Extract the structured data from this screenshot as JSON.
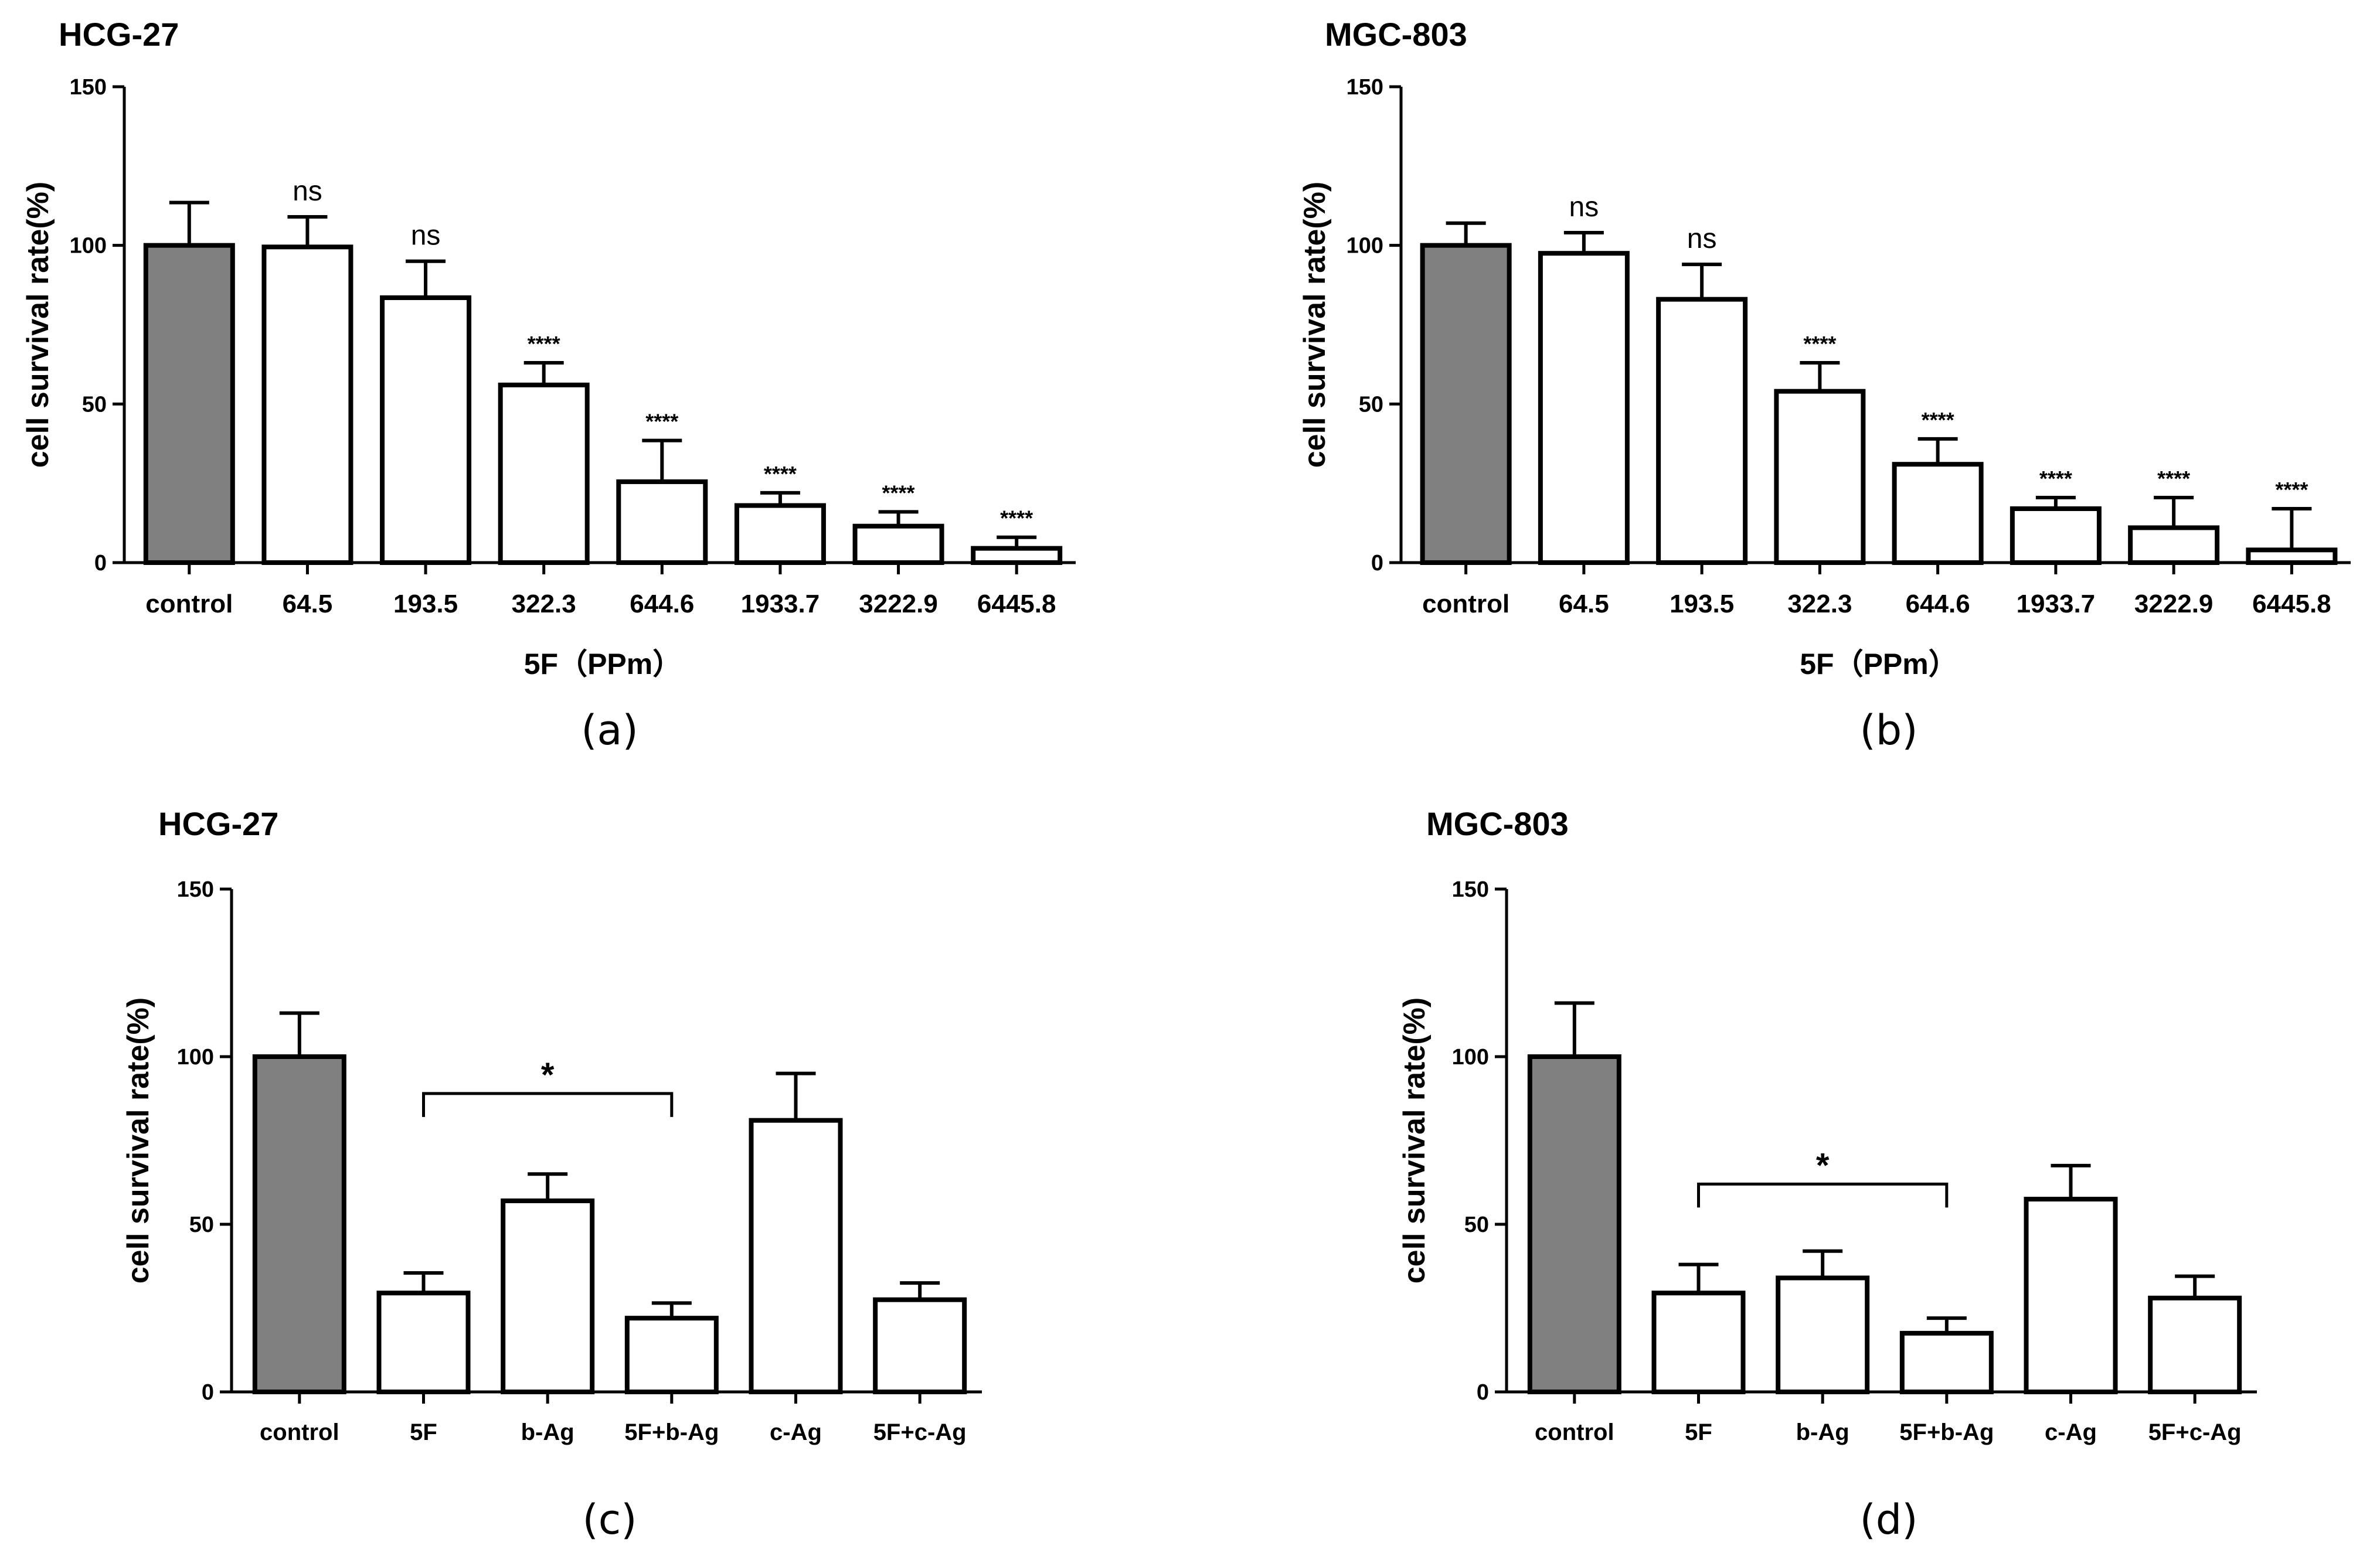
{
  "chart_data": [
    {
      "id": "a",
      "type": "bar",
      "title": "HCG-27",
      "caption": "(a)",
      "ylabel": "cell survival rate(%)",
      "xlabel": "5F（PPm）",
      "ylim": [
        0,
        150
      ],
      "yticks": [
        0,
        50,
        100,
        150
      ],
      "categories": [
        "control",
        "64.5",
        "193.5",
        "322.3",
        "644.6",
        "1933.7",
        "3222.9",
        "6445.8"
      ],
      "values": [
        100,
        99.5,
        83.5,
        56,
        25.5,
        18,
        11.5,
        4.5
      ],
      "errors": [
        13.5,
        9.5,
        11.5,
        7,
        13,
        4,
        4.5,
        3.5
      ],
      "fill": [
        "#808080",
        "#ffffff",
        "#ffffff",
        "#ffffff",
        "#ffffff",
        "#ffffff",
        "#ffffff",
        "#ffffff"
      ],
      "annotations": [
        "",
        "ns",
        "ns",
        "****",
        "****",
        "****",
        "****",
        "****"
      ]
    },
    {
      "id": "b",
      "type": "bar",
      "title": "MGC-803",
      "caption": "(b)",
      "ylabel": "cell survival rate(%)",
      "xlabel": "5F（PPm）",
      "ylim": [
        0,
        150
      ],
      "yticks": [
        0,
        50,
        100,
        150
      ],
      "categories": [
        "control",
        "64.5",
        "193.5",
        "322.3",
        "644.6",
        "1933.7",
        "3222.9",
        "6445.8"
      ],
      "values": [
        100,
        97.5,
        83,
        54,
        31,
        17,
        11,
        4
      ],
      "errors": [
        7,
        6.5,
        11,
        9,
        8,
        3.5,
        9.5,
        13
      ],
      "fill": [
        "#808080",
        "#ffffff",
        "#ffffff",
        "#ffffff",
        "#ffffff",
        "#ffffff",
        "#ffffff",
        "#ffffff"
      ],
      "annotations": [
        "",
        "ns",
        "ns",
        "****",
        "****",
        "****",
        "****",
        "****"
      ]
    },
    {
      "id": "c",
      "type": "bar",
      "title": "HCG-27",
      "caption": "(c)",
      "ylabel": "cell survival rate(%)",
      "xlabel": "",
      "ylim": [
        0,
        150
      ],
      "yticks": [
        0,
        50,
        100,
        150
      ],
      "categories": [
        "control",
        "5F",
        "b-Ag",
        "5F+b-Ag",
        "c-Ag",
        "5F+c-Ag"
      ],
      "values": [
        100,
        29.5,
        57,
        22,
        81,
        27.5
      ],
      "errors": [
        13,
        6,
        8,
        4.5,
        14,
        5
      ],
      "fill": [
        "#808080",
        "#ffffff",
        "#ffffff",
        "#ffffff",
        "#ffffff",
        "#ffffff"
      ],
      "annotations": [
        "",
        "",
        "",
        "",
        "",
        ""
      ],
      "bracket": {
        "from": 1,
        "to": 3,
        "y": 89,
        "label": "*"
      }
    },
    {
      "id": "d",
      "type": "bar",
      "title": "MGC-803",
      "caption": "(d)",
      "ylabel": "cell survival rate(%)",
      "xlabel": "",
      "ylim": [
        0,
        150
      ],
      "yticks": [
        0,
        50,
        100,
        150
      ],
      "categories": [
        "control",
        "5F",
        "b-Ag",
        "5F+b-Ag",
        "c-Ag",
        "5F+c-Ag"
      ],
      "values": [
        100,
        29.5,
        34,
        17.5,
        57.5,
        28
      ],
      "errors": [
        16,
        8.5,
        8,
        4.5,
        10,
        6.5
      ],
      "fill": [
        "#808080",
        "#ffffff",
        "#ffffff",
        "#ffffff",
        "#ffffff",
        "#ffffff"
      ],
      "annotations": [
        "",
        "",
        "",
        "",
        "",
        ""
      ],
      "bracket": {
        "from": 1,
        "to": 3,
        "y": 62,
        "label": "*"
      }
    }
  ]
}
